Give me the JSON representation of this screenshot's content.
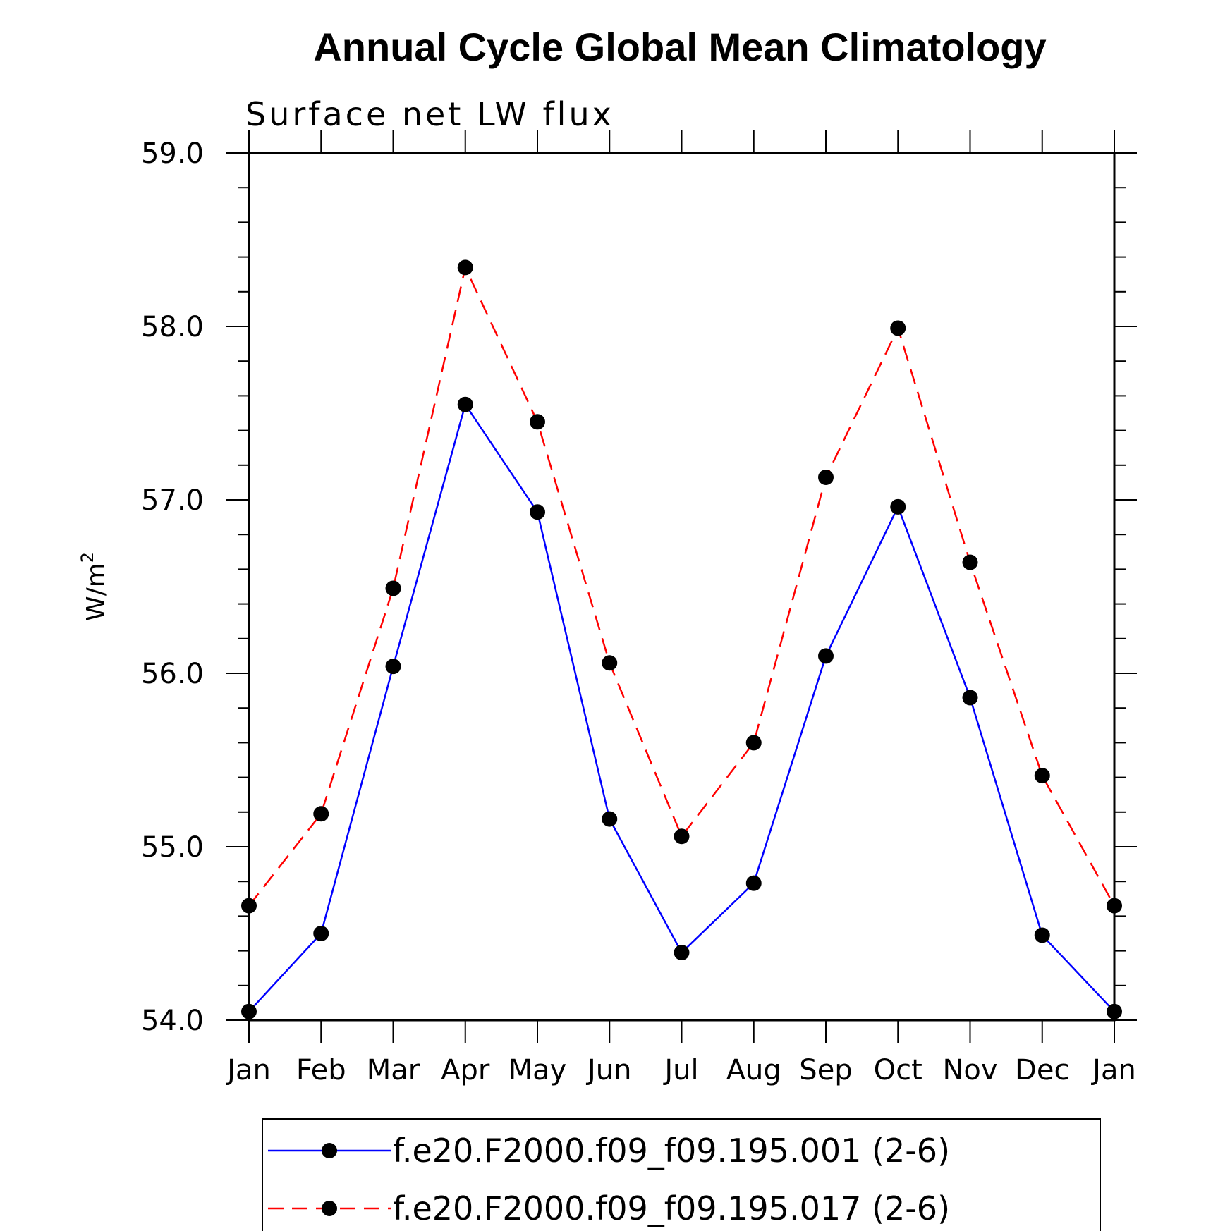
{
  "chart_data": {
    "type": "line",
    "title": "Annual Cycle Global Mean Climatology",
    "subtitle": "Surface net LW flux",
    "ylabel": "W/m",
    "ylabel_sup": "2",
    "xlabel": "",
    "categories": [
      "Jan",
      "Feb",
      "Mar",
      "Apr",
      "May",
      "Jun",
      "Jul",
      "Aug",
      "Sep",
      "Oct",
      "Nov",
      "Dec",
      "Jan"
    ],
    "ylim": [
      54.0,
      59.0
    ],
    "yticks": [
      "54.0",
      "55.0",
      "56.0",
      "57.0",
      "58.0",
      "59.0"
    ],
    "grid": false,
    "legend_position": "bottom",
    "series": [
      {
        "name": "f.e20.F2000.f09_f09.195.001 (2-6)",
        "color": "#0000ff",
        "line_style": "solid",
        "marker": "filled-circle",
        "values": [
          54.05,
          54.5,
          56.04,
          57.55,
          56.93,
          55.16,
          54.39,
          54.79,
          56.1,
          56.96,
          55.86,
          54.49,
          54.05
        ]
      },
      {
        "name": "f.e20.F2000.f09_f09.195.017 (2-6)",
        "color": "#ff0000",
        "line_style": "dashed",
        "marker": "filled-circle",
        "values": [
          54.66,
          55.19,
          56.49,
          58.34,
          57.45,
          56.06,
          55.06,
          55.6,
          57.13,
          57.99,
          56.64,
          55.41,
          54.66
        ]
      }
    ]
  }
}
